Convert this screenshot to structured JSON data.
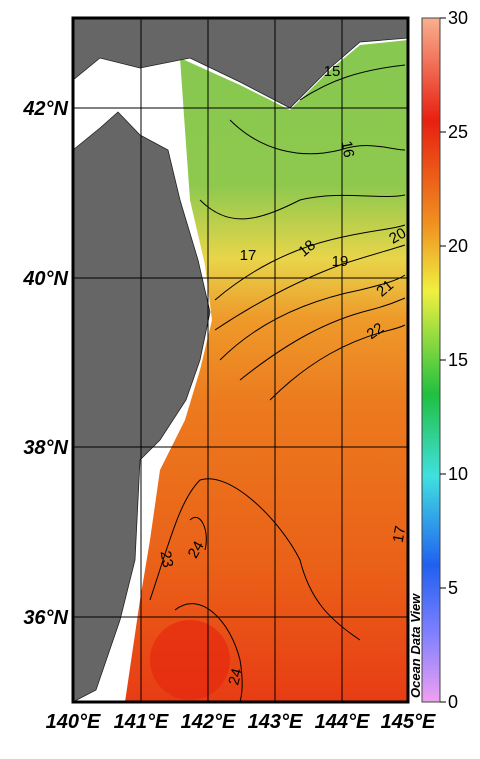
{
  "map": {
    "lat_labels": [
      "42°N",
      "40°N",
      "38°N",
      "36°N"
    ],
    "lon_labels": [
      "140°E",
      "141°E",
      "142°E",
      "143°E",
      "144°E",
      "145°E"
    ],
    "colorbar": {
      "range": [
        0,
        30
      ],
      "ticks": [
        0,
        5,
        10,
        15,
        20,
        25,
        30
      ]
    },
    "contour_labels": [
      "15",
      "16",
      "17",
      "18",
      "19",
      "20",
      "21",
      "22",
      "23",
      "24",
      "24",
      "17"
    ],
    "watermark": "Ocean Data View"
  }
}
